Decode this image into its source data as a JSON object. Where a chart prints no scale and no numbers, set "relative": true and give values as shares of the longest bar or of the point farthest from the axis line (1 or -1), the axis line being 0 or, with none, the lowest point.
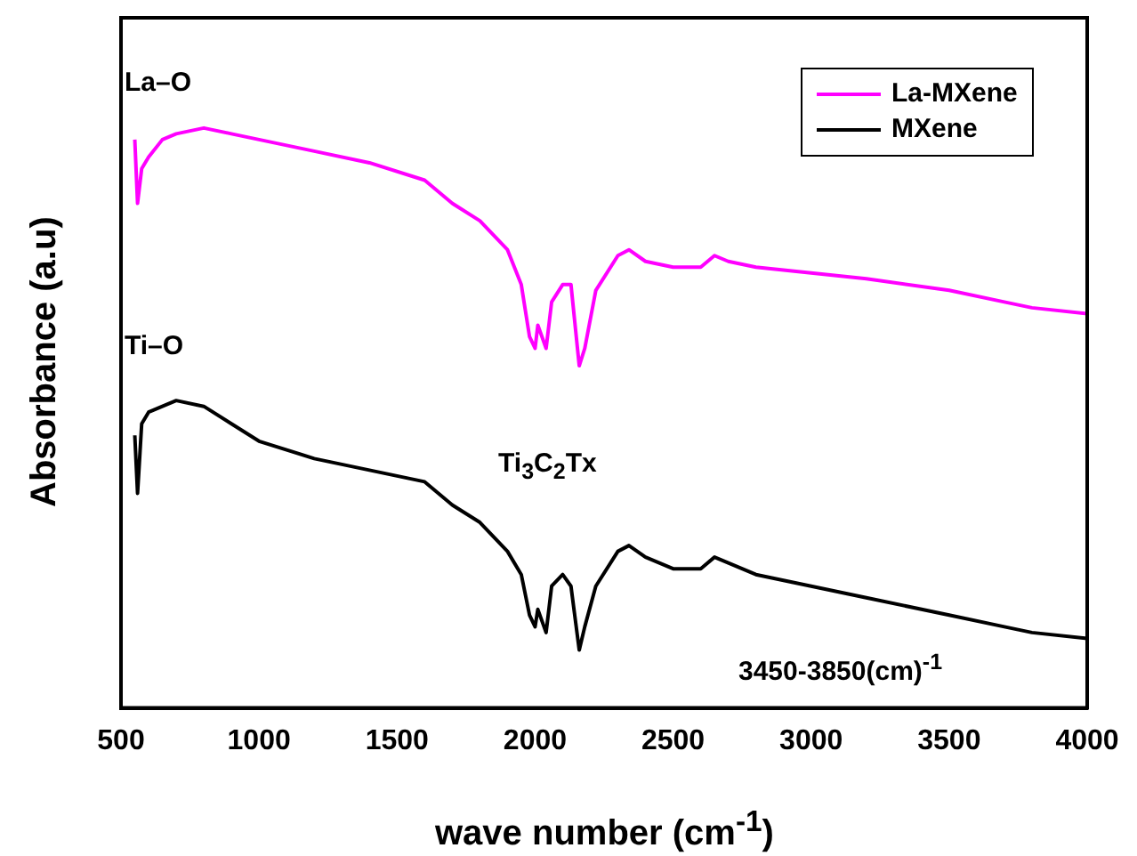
{
  "chart_data": {
    "type": "line",
    "xlabel": "wave number (cm$^{-1}$)",
    "ylabel": "Absorbance (a.u)",
    "relative": true,
    "xlim": [
      500,
      4000
    ],
    "xticks": [
      500,
      1000,
      1500,
      2000,
      2500,
      3000,
      3500,
      4000
    ],
    "legend": "top right",
    "grid": false,
    "marker": "none",
    "line_style": "solid",
    "annotations": [
      "La–O",
      "Ti–O",
      "Ti$_{3}$C$_{2}$Tx",
      "3450-3850(cm)$^{-1}$"
    ],
    "x": [
      550,
      560,
      575,
      600,
      650,
      700,
      800,
      900,
      1000,
      1200,
      1400,
      1600,
      1700,
      1800,
      1900,
      1950,
      1980,
      2000,
      2010,
      2040,
      2060,
      2100,
      2130,
      2160,
      2180,
      2220,
      2300,
      2340,
      2400,
      2500,
      2600,
      2650,
      2700,
      2800,
      3000,
      3200,
      3500,
      3700,
      3800,
      4000
    ],
    "series": [
      {
        "name": "La-MXene",
        "color": "#ff00ff",
        "values": [
          0.98,
          0.87,
          0.93,
          0.95,
          0.98,
          0.99,
          1,
          0.99,
          0.98,
          0.96,
          0.94,
          0.91,
          0.87,
          0.84,
          0.79,
          0.73,
          0.64,
          0.62,
          0.66,
          0.62,
          0.7,
          0.73,
          0.73,
          0.59,
          0.62,
          0.72,
          0.78,
          0.79,
          0.77,
          0.76,
          0.76,
          0.78,
          0.77,
          0.76,
          0.75,
          0.74,
          0.72,
          0.7,
          0.69,
          0.68
        ]
      },
      {
        "name": "MXene",
        "color": "#000000",
        "values": [
          0.47,
          0.37,
          0.49,
          0.51,
          0.52,
          0.53,
          0.52,
          0.49,
          0.46,
          0.43,
          0.41,
          0.39,
          0.35,
          0.32,
          0.27,
          0.23,
          0.16,
          0.14,
          0.17,
          0.13,
          0.21,
          0.23,
          0.21,
          0.1,
          0.14,
          0.21,
          0.27,
          0.28,
          0.26,
          0.24,
          0.24,
          0.26,
          0.25,
          0.23,
          0.21,
          0.19,
          0.16,
          0.14,
          0.13,
          0.12
        ]
      }
    ]
  }
}
